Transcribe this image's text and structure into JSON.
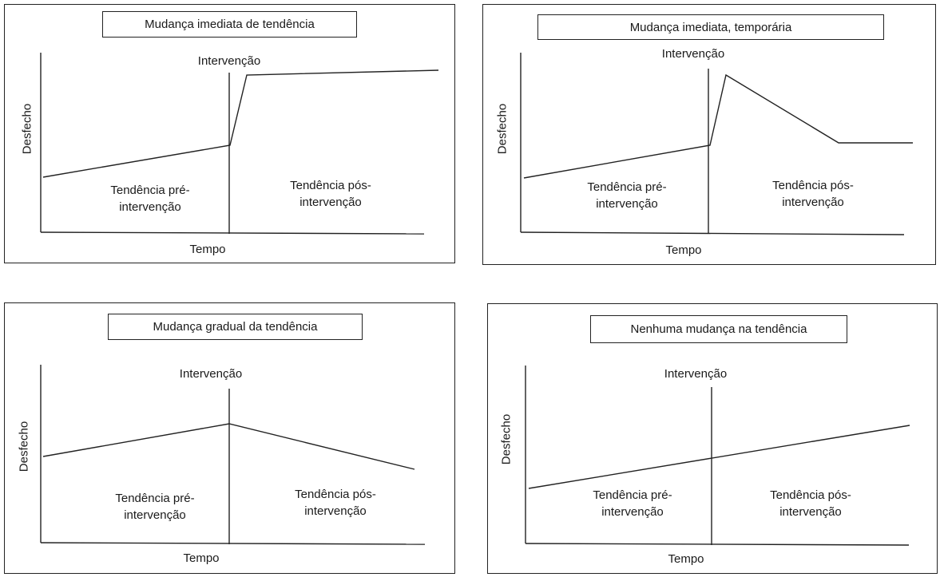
{
  "panels": [
    {
      "title": "Mudança imediata de tendência",
      "intervention_label": "Intervenção",
      "y_label": "Desfecho",
      "x_label": "Tempo",
      "pre_label_line1": "Tendência pré-",
      "pre_label_line2": "intervenção",
      "post_label_line1": "Tendência pós-",
      "post_label_line2": "intervenção"
    },
    {
      "title": "Mudança imediata, temporária",
      "intervention_label": "Intervenção",
      "y_label": "Desfecho",
      "x_label": "Tempo",
      "pre_label_line1": "Tendência pré-",
      "pre_label_line2": "intervenção",
      "post_label_line1": "Tendência pós-",
      "post_label_line2": "intervenção"
    },
    {
      "title": "Mudança gradual da tendência",
      "intervention_label": "Intervenção",
      "y_label": "Desfecho",
      "x_label": "Tempo",
      "pre_label_line1": "Tendência pré-",
      "pre_label_line2": "intervenção",
      "post_label_line1": "Tendência pós-",
      "post_label_line2": "intervenção"
    },
    {
      "title": "Nenhuma mudança na tendência",
      "intervention_label": "Intervenção",
      "y_label": "Desfecho",
      "x_label": "Tempo",
      "pre_label_line1": "Tendência pré-",
      "pre_label_line2": "intervenção",
      "post_label_line1": "Tendência pós-",
      "post_label_line2": "intervenção"
    }
  ]
}
